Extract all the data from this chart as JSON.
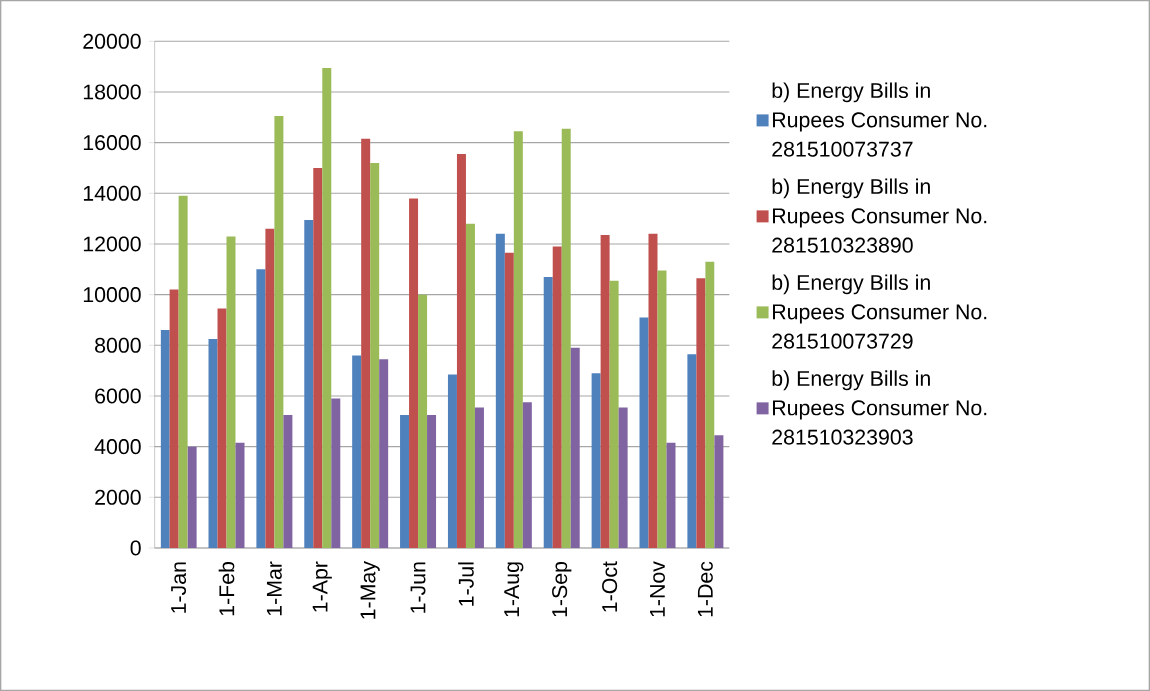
{
  "chart_data": {
    "type": "bar",
    "categories": [
      "1-Jan",
      "1-Feb",
      "1-Mar",
      "1-Apr",
      "1-May",
      "1-Jun",
      "1-Jul",
      "1-Aug",
      "1-Sep",
      "1-Oct",
      "1-Nov",
      "1-Dec"
    ],
    "series": [
      {
        "name": "b)  Energy Bills in Rupees Consumer No. 281510073737",
        "color": "#4f81bd",
        "values": [
          8600,
          8250,
          11000,
          12950,
          7600,
          5250,
          6850,
          12400,
          10700,
          6900,
          9100,
          7650
        ]
      },
      {
        "name": "b)  Energy Bills in Rupees Consumer No. 281510323890",
        "color": "#c0504d",
        "values": [
          10200,
          9450,
          12600,
          15000,
          16150,
          13800,
          15550,
          11650,
          11900,
          12350,
          12400,
          10650
        ]
      },
      {
        "name": "b)  Energy Bills in Rupees Consumer No. 281510073729",
        "color": "#9bbb59",
        "values": [
          13900,
          12300,
          17050,
          18950,
          15200,
          10000,
          12800,
          16450,
          16550,
          10550,
          10950,
          11300
        ]
      },
      {
        "name": "b)  Energy Bills in Rupees Consumer No. 281510323903",
        "color": "#8064a2",
        "values": [
          4000,
          4150,
          5250,
          5900,
          7450,
          5250,
          5550,
          5750,
          7900,
          5550,
          4150,
          4450
        ]
      }
    ],
    "ylim": [
      0,
      20000
    ],
    "yticks": [
      0,
      2000,
      4000,
      6000,
      8000,
      10000,
      12000,
      14000,
      16000,
      18000,
      20000
    ],
    "grid": "y",
    "legend": "right"
  }
}
